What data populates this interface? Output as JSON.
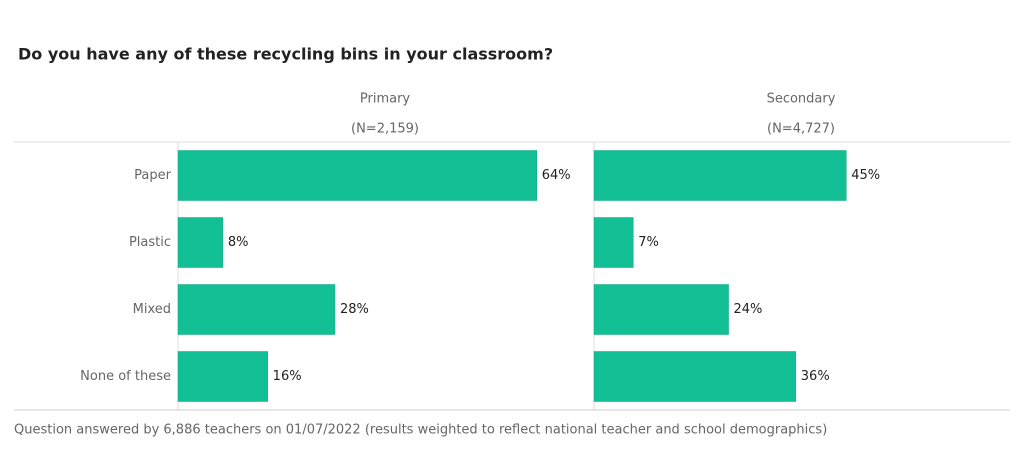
{
  "title": "Do you have any of these recycling bins in your classroom?",
  "footnote": "Question answered by 6,886 teachers on 01/07/2022 (results weighted to reflect national teacher and school demographics)",
  "chart_data": [
    {
      "type": "bar",
      "orientation": "horizontal",
      "title": "Primary",
      "subtitle": "(N=2,159)",
      "categories": [
        "Paper",
        "Plastic",
        "Mixed",
        "None of these"
      ],
      "values": [
        64,
        8,
        28,
        16
      ],
      "value_labels": [
        "64%",
        "8%",
        "28%",
        "16%"
      ],
      "color": "#13bf94",
      "xlim": [
        0,
        73.5
      ]
    },
    {
      "type": "bar",
      "orientation": "horizontal",
      "title": "Secondary",
      "subtitle": "(N=4,727)",
      "values": [
        45,
        7,
        24,
        36
      ],
      "value_labels": [
        "45%",
        "7%",
        "24%",
        "36%"
      ],
      "color": "#13bf94",
      "xlim": [
        0,
        73.5
      ]
    }
  ]
}
